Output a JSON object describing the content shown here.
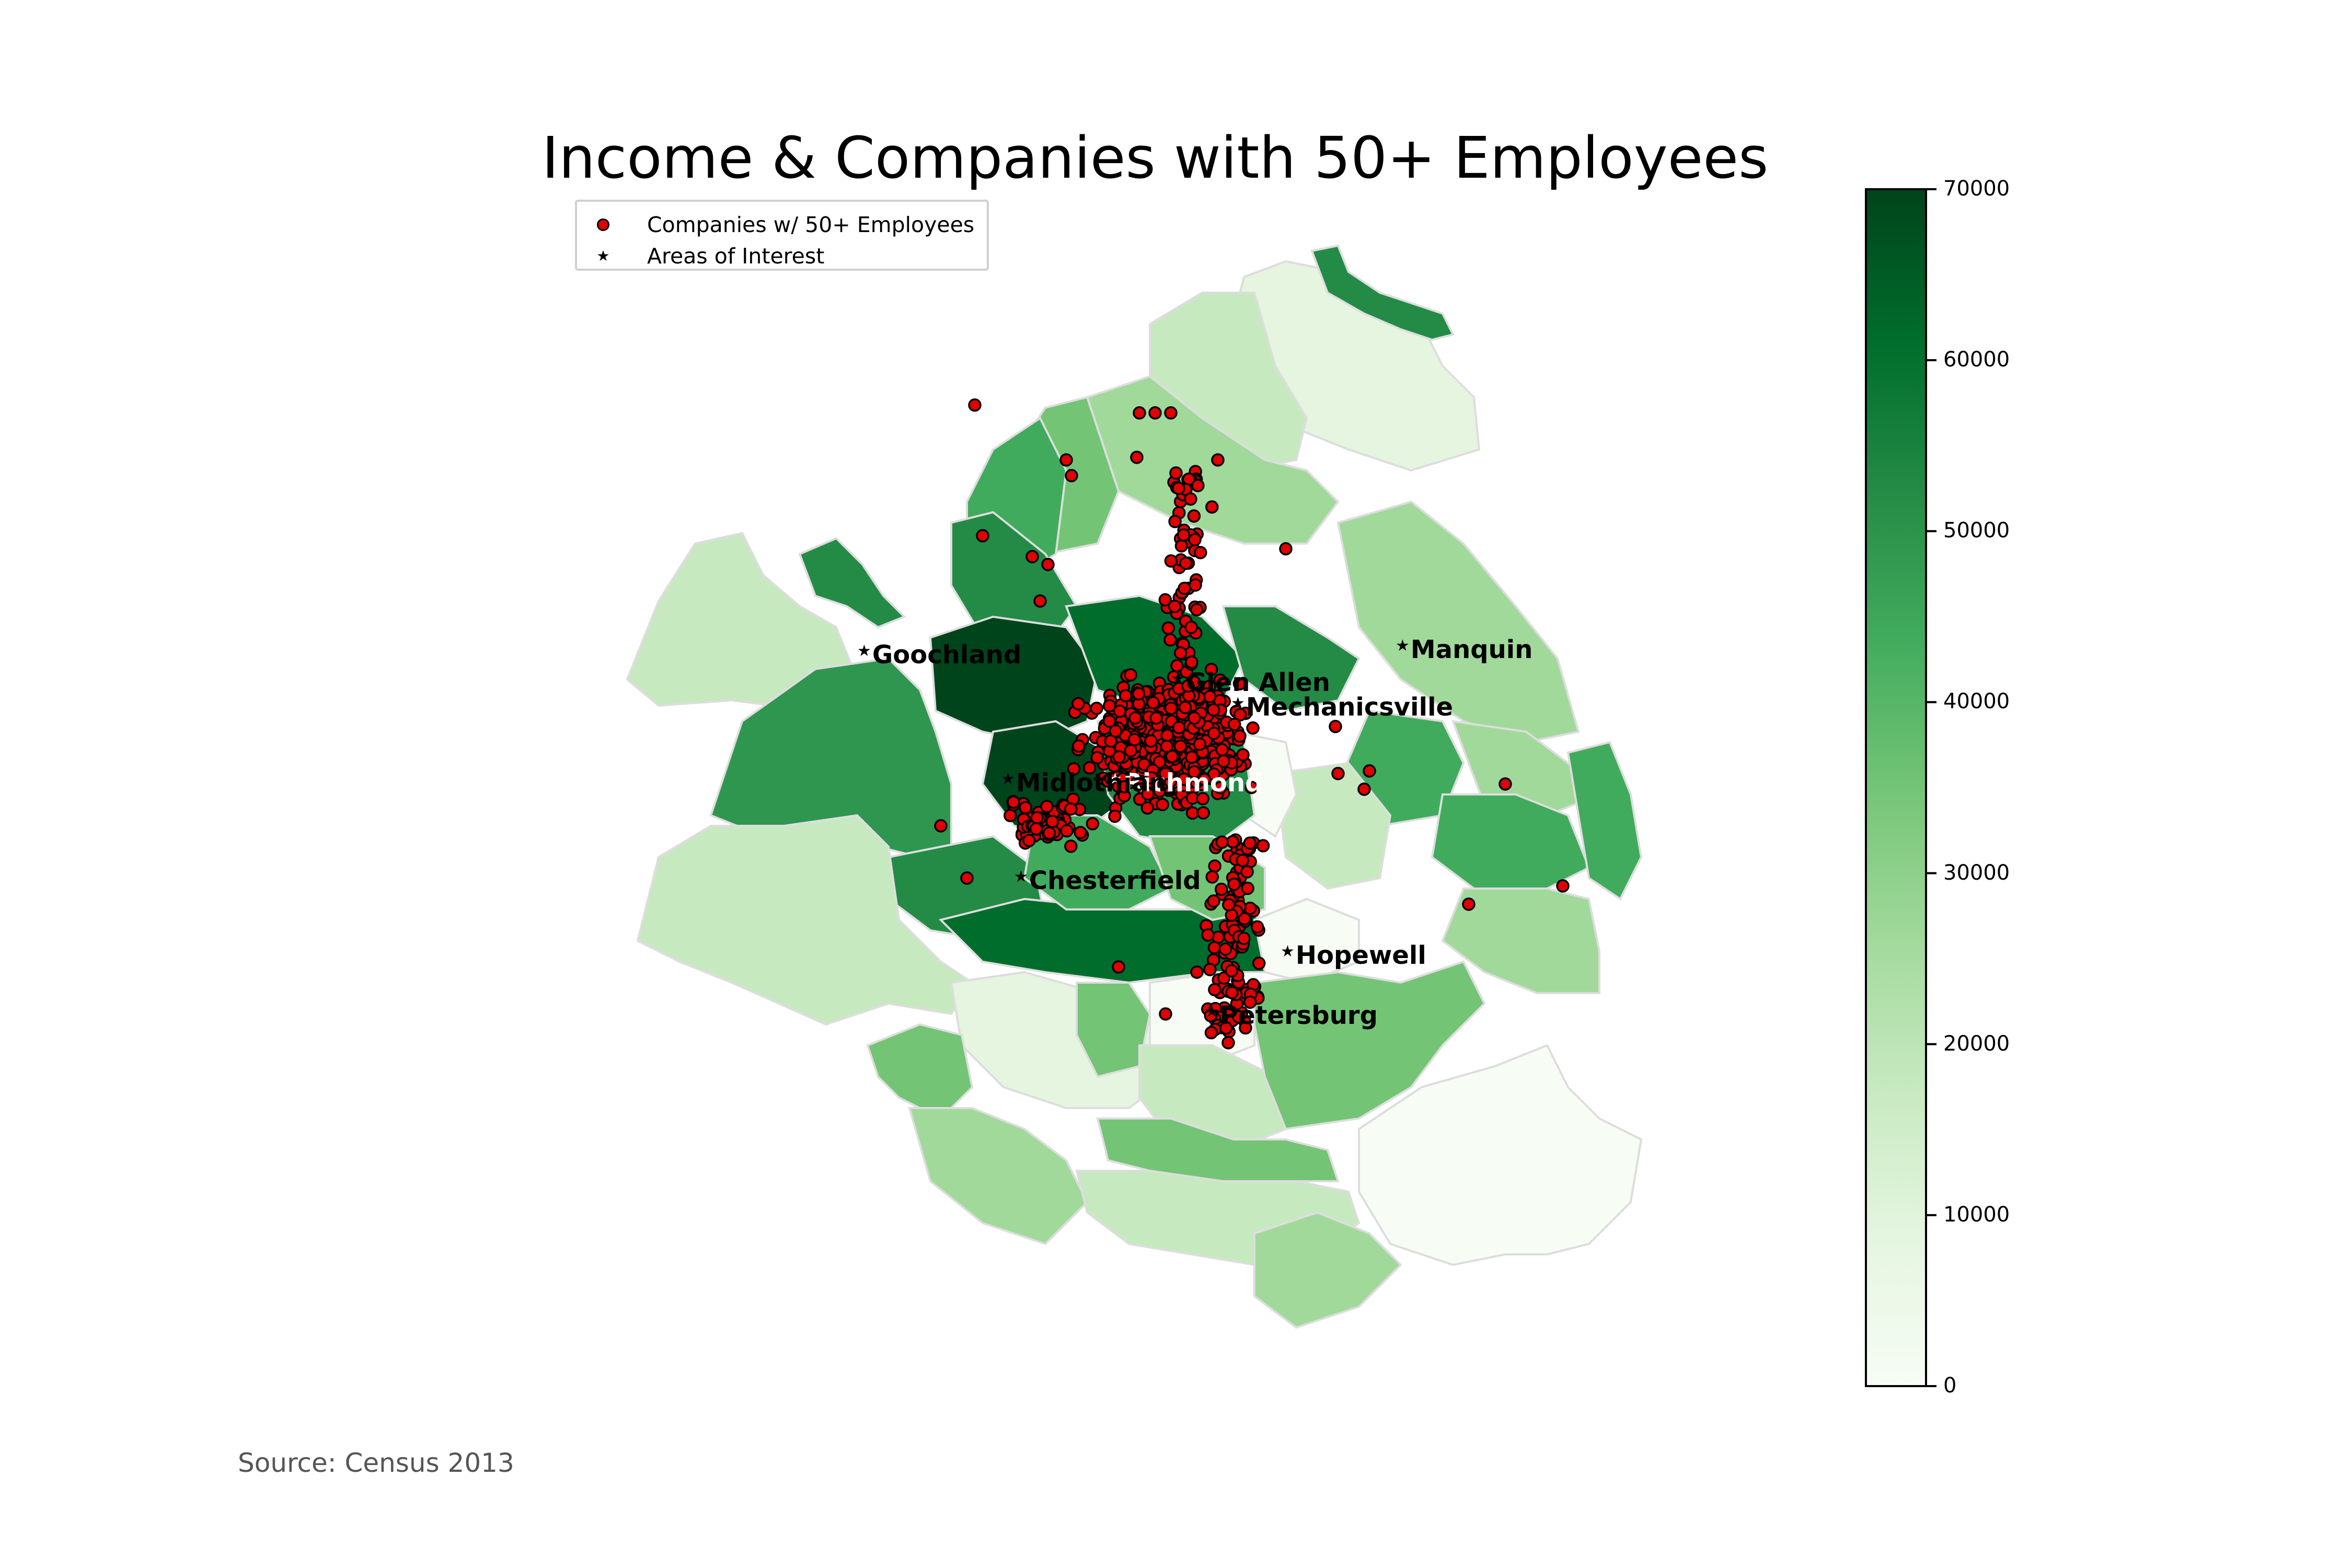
{
  "title": "Income & Companies with 50+ Employees",
  "source": "Source: Census 2013",
  "legend": {
    "companies_label": "Companies w/ 50+ Employees",
    "areas_label": "Areas of Interest"
  },
  "colorbar": {
    "min": 0,
    "max": 70000,
    "ticks": [
      "0",
      "10000",
      "20000",
      "30000",
      "40000",
      "50000",
      "60000",
      "70000"
    ],
    "colormap": "Greens",
    "colors": [
      "#f7fcf5",
      "#e5f5e0",
      "#c7e9c0",
      "#a1d99b",
      "#74c476",
      "#41ab5d",
      "#238b45",
      "#006d2c",
      "#00441b"
    ]
  },
  "places": [
    {
      "name": "Goochland",
      "color": "#000000"
    },
    {
      "name": "Manquin",
      "color": "#000000"
    },
    {
      "name": "Glen Allen",
      "color": "#000000"
    },
    {
      "name": "Mechanicsville",
      "color": "#000000"
    },
    {
      "name": "Richmond",
      "color": "#ffffff"
    },
    {
      "name": "Midlothian",
      "color": "#000000"
    },
    {
      "name": "Chesterfield",
      "color": "#000000"
    },
    {
      "name": "Hopewell",
      "color": "#000000"
    },
    {
      "name": "Petersburg",
      "color": "#000000"
    }
  ],
  "company_marker_color": "#e00000"
}
